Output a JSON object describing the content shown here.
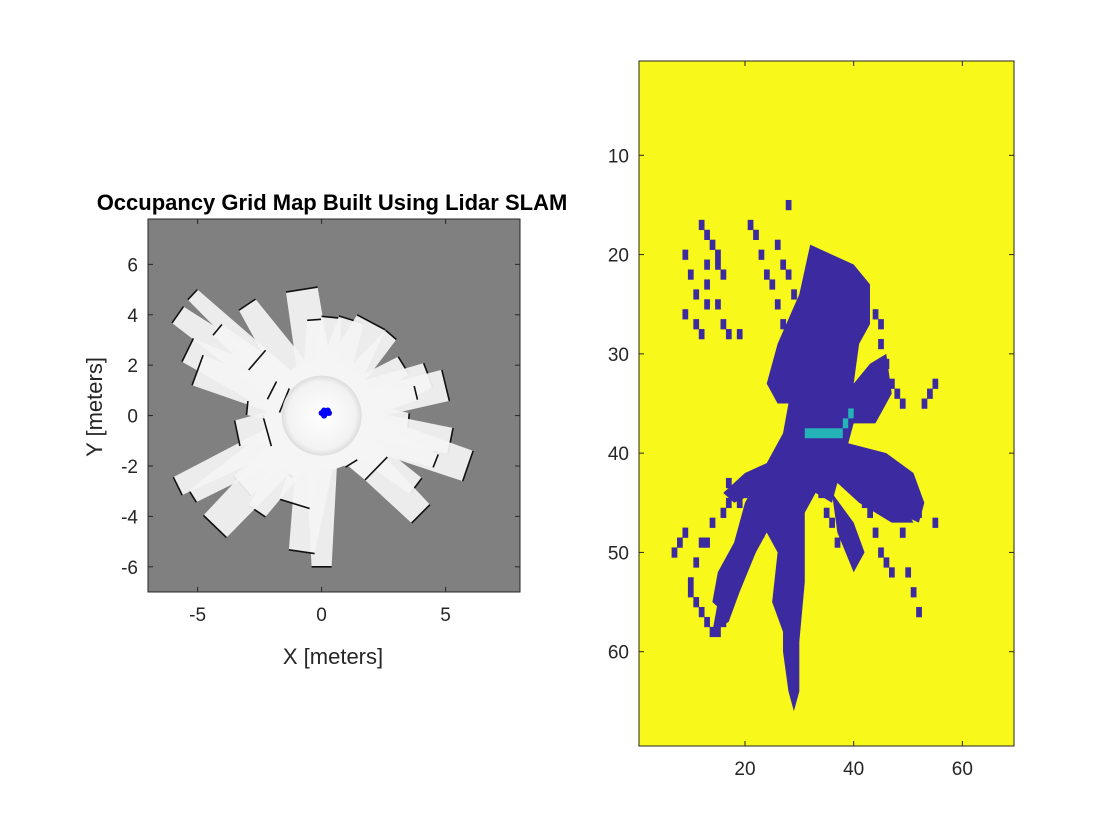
{
  "figure": {
    "background": "#ffffff"
  },
  "chart_data": [
    {
      "type": "heatmap",
      "title": "Occupancy Grid Map Built Using Lidar SLAM",
      "xlabel": "X [meters]",
      "ylabel": "Y [meters]",
      "xlim": [
        -7,
        8
      ],
      "ylim": [
        -7,
        7.8
      ],
      "xticks": [
        -5,
        0,
        5
      ],
      "xtick_labels": [
        "-5",
        "0",
        "5"
      ],
      "yticks": [
        -6,
        -4,
        -2,
        0,
        2,
        4,
        6
      ],
      "ytick_labels": [
        "-6",
        "-4",
        "-2",
        "0",
        "2",
        "4",
        "6"
      ],
      "grid": false,
      "colors": {
        "unknown": "#808080",
        "free": "#f4f4f4",
        "occupied": "#111111",
        "pose": "#0000ff"
      },
      "free_rays": [
        [
          -5.2,
          4.8
        ],
        [
          -5.8,
          4.0
        ],
        [
          -5.4,
          2.6
        ],
        [
          -5.0,
          1.8
        ],
        [
          -4.2,
          3.4
        ],
        [
          -3.0,
          4.4
        ],
        [
          -2.6,
          2.2
        ],
        [
          -0.8,
          5.0
        ],
        [
          -0.3,
          3.8
        ],
        [
          0.4,
          3.9
        ],
        [
          1.2,
          3.8
        ],
        [
          2.0,
          3.7
        ],
        [
          2.8,
          3.2
        ],
        [
          3.3,
          2.0
        ],
        [
          4.3,
          1.6
        ],
        [
          5.0,
          1.2
        ],
        [
          3.8,
          0.9
        ],
        [
          3.5,
          -0.3
        ],
        [
          5.2,
          -1.0
        ],
        [
          5.9,
          -2.0
        ],
        [
          4.6,
          -1.8
        ],
        [
          3.8,
          -2.8
        ],
        [
          4.0,
          -3.9
        ],
        [
          2.2,
          -2.1
        ],
        [
          1.2,
          -1.9
        ],
        [
          0.0,
          -6.0
        ],
        [
          -0.8,
          -5.4
        ],
        [
          -1.1,
          -3.5
        ],
        [
          -1.4,
          -2.3
        ],
        [
          -2.6,
          -3.8
        ],
        [
          -3.2,
          -2.8
        ],
        [
          -4.3,
          -4.4
        ],
        [
          -5.2,
          -3.2
        ],
        [
          -5.8,
          -2.8
        ],
        [
          -3.4,
          -0.7
        ],
        [
          -2.2,
          -0.6
        ],
        [
          -3.0,
          0.3
        ],
        [
          -2.0,
          1.0
        ],
        [
          -1.5,
          0.6
        ]
      ],
      "robot_path": [
        [
          0.0,
          0.1
        ],
        [
          0.1,
          0.2
        ],
        [
          0.2,
          0.1
        ],
        [
          0.25,
          0.2
        ],
        [
          0.3,
          0.1
        ],
        [
          0.1,
          0.0
        ]
      ]
    },
    {
      "type": "heatmap",
      "title": "",
      "xlabel": "",
      "ylabel": "",
      "xlim": [
        0.5,
        69.5
      ],
      "ylim": [
        0.5,
        69.5
      ],
      "y_reversed": true,
      "xticks": [
        20,
        40,
        60
      ],
      "xtick_labels": [
        "20",
        "40",
        "60"
      ],
      "yticks": [
        10,
        20,
        30,
        40,
        50,
        60
      ],
      "ytick_labels": [
        "10",
        "20",
        "30",
        "40",
        "50",
        "60"
      ],
      "grid": false,
      "colors": {
        "background": "#f8f81a",
        "occupied": "#3c2aa0",
        "path": "#24b4b8"
      },
      "occupied_cells": [
        [
          28,
          15
        ],
        [
          12,
          17
        ],
        [
          13,
          18
        ],
        [
          21,
          17
        ],
        [
          14,
          19
        ],
        [
          22,
          18
        ],
        [
          26,
          19
        ],
        [
          9,
          20
        ],
        [
          15,
          20
        ],
        [
          23,
          20
        ],
        [
          27,
          21
        ],
        [
          13,
          21
        ],
        [
          15,
          21
        ],
        [
          24,
          22
        ],
        [
          28,
          22
        ],
        [
          10,
          22
        ],
        [
          13,
          23
        ],
        [
          16,
          22
        ],
        [
          25,
          23
        ],
        [
          29,
          24
        ],
        [
          11,
          24
        ],
        [
          13,
          25
        ],
        [
          15,
          25
        ],
        [
          26,
          25
        ],
        [
          30,
          26
        ],
        [
          9,
          26
        ],
        [
          11,
          27
        ],
        [
          16,
          27
        ],
        [
          27,
          27
        ],
        [
          12,
          28
        ],
        [
          17,
          28
        ],
        [
          19,
          28
        ],
        [
          36,
          27
        ],
        [
          37,
          28
        ],
        [
          44,
          26
        ],
        [
          45,
          27
        ],
        [
          45,
          29
        ],
        [
          46,
          31
        ],
        [
          47,
          33
        ],
        [
          48,
          34
        ],
        [
          49,
          35
        ],
        [
          53,
          35
        ],
        [
          54,
          34
        ],
        [
          55,
          33
        ],
        [
          48,
          44
        ],
        [
          50,
          45
        ],
        [
          52,
          46
        ],
        [
          55,
          47
        ],
        [
          47,
          46
        ],
        [
          49,
          48
        ],
        [
          50,
          52
        ],
        [
          51,
          54
        ],
        [
          52,
          56
        ],
        [
          10,
          53
        ],
        [
          11,
          51
        ],
        [
          12,
          49
        ],
        [
          13,
          49
        ],
        [
          14,
          47
        ],
        [
          16,
          46
        ],
        [
          17,
          45
        ],
        [
          7,
          50
        ],
        [
          8,
          49
        ],
        [
          9,
          48
        ],
        [
          10,
          54
        ],
        [
          11,
          55
        ],
        [
          12,
          56
        ],
        [
          13,
          57
        ],
        [
          14,
          58
        ],
        [
          15,
          58
        ],
        [
          16,
          57
        ],
        [
          22,
          45
        ],
        [
          22,
          47
        ],
        [
          23,
          48
        ],
        [
          17,
          43
        ],
        [
          18,
          44
        ],
        [
          19,
          45
        ],
        [
          20,
          44
        ],
        [
          21,
          43
        ],
        [
          24,
          42
        ],
        [
          25,
          41
        ],
        [
          34,
          44
        ],
        [
          35,
          46
        ],
        [
          36,
          47
        ],
        [
          37,
          49
        ],
        [
          42,
          45
        ],
        [
          43,
          46
        ],
        [
          44,
          48
        ],
        [
          45,
          50
        ],
        [
          46,
          51
        ],
        [
          47,
          52
        ]
      ],
      "free_polygons": [
        [
          [
            24,
            33
          ],
          [
            26,
            29
          ],
          [
            30,
            24
          ],
          [
            32,
            19
          ],
          [
            36,
            20
          ],
          [
            40,
            21
          ],
          [
            43,
            23
          ],
          [
            43,
            27
          ],
          [
            41,
            29
          ],
          [
            40,
            33
          ],
          [
            43,
            31
          ],
          [
            46,
            30
          ],
          [
            47,
            34
          ],
          [
            44,
            37
          ],
          [
            40,
            37
          ],
          [
            39,
            39
          ],
          [
            46,
            40
          ],
          [
            51,
            42
          ],
          [
            53,
            45
          ],
          [
            52,
            47
          ],
          [
            48,
            46
          ],
          [
            44,
            45
          ],
          [
            40,
            44
          ],
          [
            37,
            43
          ],
          [
            36,
            45
          ],
          [
            33,
            44
          ],
          [
            31,
            46
          ],
          [
            31,
            53
          ],
          [
            30,
            59
          ],
          [
            30,
            64
          ],
          [
            29,
            66
          ],
          [
            28,
            64
          ],
          [
            27,
            60
          ],
          [
            27,
            55
          ],
          [
            26,
            50
          ],
          [
            24,
            48
          ],
          [
            22,
            50
          ],
          [
            19,
            53
          ],
          [
            16,
            56
          ],
          [
            14,
            55
          ],
          [
            15,
            52
          ],
          [
            18,
            49
          ],
          [
            20,
            45
          ],
          [
            24,
            41
          ],
          [
            27,
            38
          ],
          [
            28,
            35
          ],
          [
            26,
            35
          ]
        ],
        [
          [
            24,
            42
          ],
          [
            22,
            44
          ],
          [
            18,
            45
          ],
          [
            16,
            44
          ],
          [
            20,
            42
          ],
          [
            24,
            41
          ]
        ],
        [
          [
            37,
            41
          ],
          [
            44,
            43
          ],
          [
            49,
            45
          ],
          [
            51,
            47
          ],
          [
            47,
            47
          ],
          [
            41,
            45
          ],
          [
            37,
            43
          ]
        ],
        [
          [
            36,
            44
          ],
          [
            40,
            47
          ],
          [
            42,
            50
          ],
          [
            40,
            52
          ],
          [
            37,
            48
          ]
        ],
        [
          [
            24,
            45
          ],
          [
            22,
            50
          ],
          [
            19,
            54
          ],
          [
            17,
            57
          ],
          [
            14,
            58
          ],
          [
            15,
            55
          ],
          [
            18,
            51
          ],
          [
            21,
            47
          ]
        ],
        [
          [
            26,
            50
          ],
          [
            28,
            54
          ],
          [
            27,
            58
          ],
          [
            25,
            55
          ]
        ]
      ],
      "path_cells": [
        [
          31.5,
          38
        ],
        [
          37.5,
          38
        ],
        [
          38.5,
          37
        ],
        [
          39.5,
          36
        ]
      ]
    }
  ]
}
